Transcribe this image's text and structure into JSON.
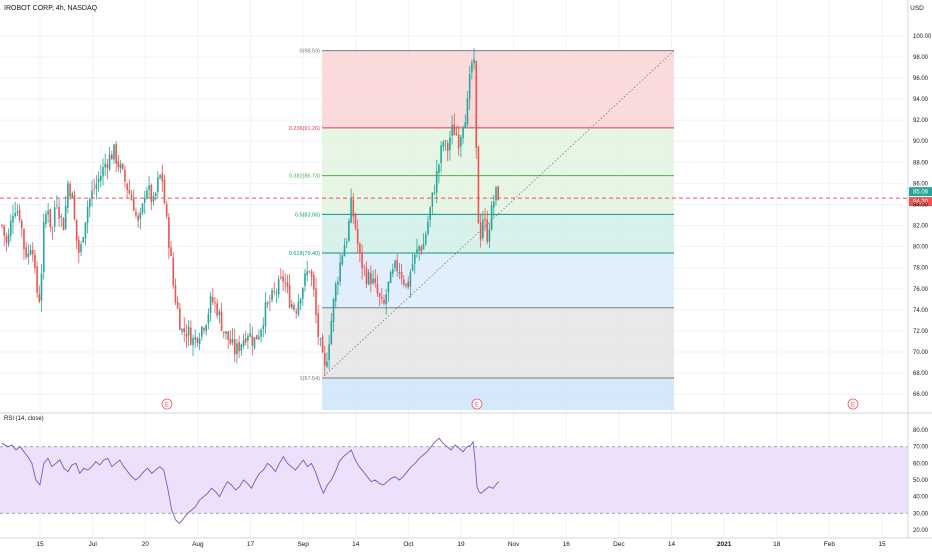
{
  "symbol_title": "IROBOT CORP, 4h, NASDAQ",
  "currency": "USD",
  "rsi_label": "RSI (14, close)",
  "earnings_marker": "E",
  "colors": {
    "up": "#26a69a",
    "down": "#ef5350",
    "rsi_line": "#7e57c2",
    "rsi_band": "#ede0fb",
    "price_line": "#ef5350",
    "fib_zone_top": "#f9d4d4",
    "fib_zone_upper": "#e3f3df",
    "fib_zone_middle": "#d2efe7",
    "fib_zone_lower": "#dcebfb",
    "fib_zone_bottom": "#e5e5e5",
    "fib_zone_extension": "#cfe4fb"
  },
  "chart_data": {
    "type": "candlestick",
    "price_axis": {
      "ticks": [
        "100.00",
        "98.00",
        "96.00",
        "94.00",
        "92.00",
        "90.00",
        "88.00",
        "86.00",
        "84.00",
        "82.00",
        "80.00",
        "78.00",
        "76.00",
        "74.00",
        "72.00",
        "70.00",
        "68.00",
        "66.00"
      ],
      "range": [
        64.5,
        101.5
      ]
    },
    "rsi_axis": {
      "ticks": [
        "80.00",
        "70.00",
        "60.00",
        "50.00",
        "40.00",
        "30.00",
        "20.00"
      ],
      "range": [
        17,
        83
      ],
      "band": [
        30,
        70
      ]
    },
    "time_axis_labels": [
      "15",
      "Jul",
      "20",
      "Aug",
      "17",
      "Sep",
      "14",
      "Oct",
      "19",
      "Nov",
      "16",
      "Dec",
      "14",
      "2021",
      "18",
      "Feb",
      "15"
    ],
    "last_price_tag": "85.08",
    "second_price_tag": "84.30",
    "current_price": 84.6,
    "fib_levels": [
      {
        "label": "0(98.59)",
        "value": 98.59,
        "color": "#787b86"
      },
      {
        "label": "0.236(91.26)",
        "value": 91.26,
        "color": "#f23645"
      },
      {
        "label": "0.382(86.73)",
        "value": 86.73,
        "color": "#4caf50"
      },
      {
        "label": "0.5(83.06)",
        "value": 83.06,
        "color": "#089981"
      },
      {
        "label": "0.618(79.40)",
        "value": 79.4,
        "color": "#089981"
      },
      {
        "label": "",
        "value": 74.2,
        "color": "#787b86"
      },
      {
        "label": "1(67.54)",
        "value": 67.54,
        "color": "#787b86"
      }
    ],
    "fib_extension_bottom": 63.5,
    "earnings_count": 3,
    "price_path": [
      [
        0,
        82
      ],
      [
        5,
        80
      ],
      [
        12,
        84
      ],
      [
        18,
        83
      ],
      [
        22,
        80
      ],
      [
        26,
        79
      ],
      [
        30,
        81
      ],
      [
        34,
        76
      ],
      [
        38,
        75
      ],
      [
        42,
        82
      ],
      [
        46,
        84
      ],
      [
        50,
        81
      ],
      [
        54,
        85
      ],
      [
        58,
        83
      ],
      [
        62,
        82
      ],
      [
        66,
        86
      ],
      [
        70,
        85
      ],
      [
        74,
        81
      ],
      [
        78,
        79
      ],
      [
        82,
        82
      ],
      [
        86,
        84
      ],
      [
        90,
        85
      ],
      [
        95,
        86
      ],
      [
        100,
        87
      ],
      [
        104,
        88
      ],
      [
        108,
        88.5
      ],
      [
        112,
        89
      ],
      [
        116,
        88
      ],
      [
        120,
        87
      ],
      [
        124,
        86
      ],
      [
        128,
        85
      ],
      [
        132,
        84
      ],
      [
        136,
        82
      ],
      [
        140,
        83
      ],
      [
        144,
        86
      ],
      [
        148,
        85
      ],
      [
        152,
        84
      ],
      [
        156,
        86
      ],
      [
        160,
        87
      ],
      [
        164,
        83
      ],
      [
        168,
        80
      ],
      [
        172,
        76
      ],
      [
        176,
        74
      ],
      [
        180,
        72
      ],
      [
        186,
        72
      ],
      [
        192,
        71
      ],
      [
        198,
        72
      ],
      [
        204,
        73
      ],
      [
        210,
        75
      ],
      [
        216,
        74
      ],
      [
        222,
        72
      ],
      [
        228,
        71
      ],
      [
        234,
        70
      ],
      [
        240,
        71
      ],
      [
        246,
        72
      ],
      [
        252,
        71
      ],
      [
        258,
        72
      ],
      [
        264,
        74
      ],
      [
        270,
        75
      ],
      [
        276,
        76
      ],
      [
        282,
        77
      ],
      [
        288,
        75
      ],
      [
        294,
        74
      ],
      [
        300,
        76
      ],
      [
        304,
        77
      ],
      [
        308,
        78
      ],
      [
        312,
        76
      ],
      [
        316,
        72
      ],
      [
        320,
        70
      ],
      [
        323,
        68
      ],
      [
        326,
        70
      ],
      [
        330,
        73
      ],
      [
        334,
        76
      ],
      [
        338,
        78
      ],
      [
        342,
        80
      ],
      [
        346,
        81
      ],
      [
        350,
        84
      ],
      [
        354,
        82
      ],
      [
        358,
        79
      ],
      [
        362,
        78
      ],
      [
        366,
        77
      ],
      [
        370,
        77
      ],
      [
        374,
        76
      ],
      [
        378,
        75
      ],
      [
        382,
        74
      ],
      [
        386,
        76
      ],
      [
        390,
        77
      ],
      [
        394,
        78
      ],
      [
        398,
        78
      ],
      [
        402,
        77
      ],
      [
        406,
        76
      ],
      [
        410,
        78
      ],
      [
        414,
        79
      ],
      [
        418,
        80
      ],
      [
        422,
        80
      ],
      [
        426,
        82
      ],
      [
        430,
        84
      ],
      [
        434,
        86
      ],
      [
        438,
        88
      ],
      [
        442,
        90
      ],
      [
        446,
        89
      ],
      [
        450,
        91
      ],
      [
        454,
        91
      ],
      [
        458,
        90
      ],
      [
        462,
        92
      ],
      [
        466,
        93
      ],
      [
        468,
        95
      ],
      [
        470,
        97
      ],
      [
        472,
        98
      ],
      [
        474,
        96
      ],
      [
        476,
        84
      ],
      [
        478,
        82
      ],
      [
        480,
        81
      ],
      [
        482,
        83
      ],
      [
        484,
        82
      ],
      [
        486,
        81
      ],
      [
        488,
        82
      ],
      [
        490,
        83
      ],
      [
        492,
        84
      ],
      [
        494,
        85
      ],
      [
        496,
        85
      ],
      [
        498,
        85
      ]
    ],
    "rsi_path": [
      [
        0,
        72
      ],
      [
        6,
        70
      ],
      [
        10,
        71
      ],
      [
        14,
        68
      ],
      [
        18,
        70
      ],
      [
        22,
        67
      ],
      [
        26,
        64
      ],
      [
        30,
        60
      ],
      [
        34,
        50
      ],
      [
        38,
        47
      ],
      [
        42,
        60
      ],
      [
        46,
        63
      ],
      [
        50,
        58
      ],
      [
        54,
        60
      ],
      [
        58,
        62
      ],
      [
        62,
        57
      ],
      [
        66,
        55
      ],
      [
        70,
        59
      ],
      [
        74,
        60
      ],
      [
        78,
        54
      ],
      [
        82,
        57
      ],
      [
        86,
        56
      ],
      [
        90,
        58
      ],
      [
        94,
        61
      ],
      [
        98,
        59
      ],
      [
        102,
        62
      ],
      [
        106,
        63
      ],
      [
        110,
        58
      ],
      [
        114,
        60
      ],
      [
        118,
        62
      ],
      [
        122,
        58
      ],
      [
        126,
        55
      ],
      [
        130,
        52
      ],
      [
        134,
        50
      ],
      [
        138,
        52
      ],
      [
        142,
        55
      ],
      [
        146,
        57
      ],
      [
        150,
        54
      ],
      [
        154,
        56
      ],
      [
        158,
        58
      ],
      [
        162,
        56
      ],
      [
        166,
        45
      ],
      [
        170,
        32
      ],
      [
        174,
        26
      ],
      [
        178,
        24
      ],
      [
        182,
        27
      ],
      [
        186,
        30
      ],
      [
        190,
        32
      ],
      [
        194,
        34
      ],
      [
        198,
        38
      ],
      [
        202,
        40
      ],
      [
        206,
        42
      ],
      [
        210,
        45
      ],
      [
        214,
        43
      ],
      [
        218,
        40
      ],
      [
        222,
        45
      ],
      [
        226,
        49
      ],
      [
        230,
        47
      ],
      [
        234,
        44
      ],
      [
        238,
        46
      ],
      [
        242,
        50
      ],
      [
        246,
        48
      ],
      [
        250,
        45
      ],
      [
        254,
        50
      ],
      [
        258,
        54
      ],
      [
        262,
        56
      ],
      [
        266,
        60
      ],
      [
        270,
        58
      ],
      [
        274,
        55
      ],
      [
        278,
        60
      ],
      [
        282,
        64
      ],
      [
        286,
        60
      ],
      [
        290,
        58
      ],
      [
        294,
        56
      ],
      [
        298,
        59
      ],
      [
        302,
        62
      ],
      [
        306,
        58
      ],
      [
        310,
        60
      ],
      [
        314,
        55
      ],
      [
        318,
        48
      ],
      [
        322,
        42
      ],
      [
        326,
        47
      ],
      [
        330,
        50
      ],
      [
        334,
        55
      ],
      [
        338,
        61
      ],
      [
        342,
        64
      ],
      [
        346,
        66
      ],
      [
        350,
        68
      ],
      [
        354,
        62
      ],
      [
        358,
        58
      ],
      [
        362,
        55
      ],
      [
        366,
        52
      ],
      [
        370,
        49
      ],
      [
        374,
        50
      ],
      [
        378,
        48
      ],
      [
        382,
        47
      ],
      [
        386,
        49
      ],
      [
        390,
        51
      ],
      [
        394,
        52
      ],
      [
        398,
        50
      ],
      [
        402,
        52
      ],
      [
        406,
        55
      ],
      [
        410,
        58
      ],
      [
        414,
        60
      ],
      [
        418,
        63
      ],
      [
        422,
        65
      ],
      [
        426,
        67
      ],
      [
        430,
        70
      ],
      [
        434,
        73
      ],
      [
        438,
        75
      ],
      [
        442,
        72
      ],
      [
        446,
        70
      ],
      [
        450,
        68
      ],
      [
        454,
        71
      ],
      [
        458,
        69
      ],
      [
        462,
        67
      ],
      [
        466,
        70
      ],
      [
        470,
        71
      ],
      [
        472,
        73
      ],
      [
        474,
        62
      ],
      [
        476,
        46
      ],
      [
        478,
        43
      ],
      [
        480,
        42
      ],
      [
        484,
        44
      ],
      [
        488,
        46
      ],
      [
        492,
        45
      ],
      [
        496,
        48
      ],
      [
        498,
        49
      ]
    ]
  }
}
